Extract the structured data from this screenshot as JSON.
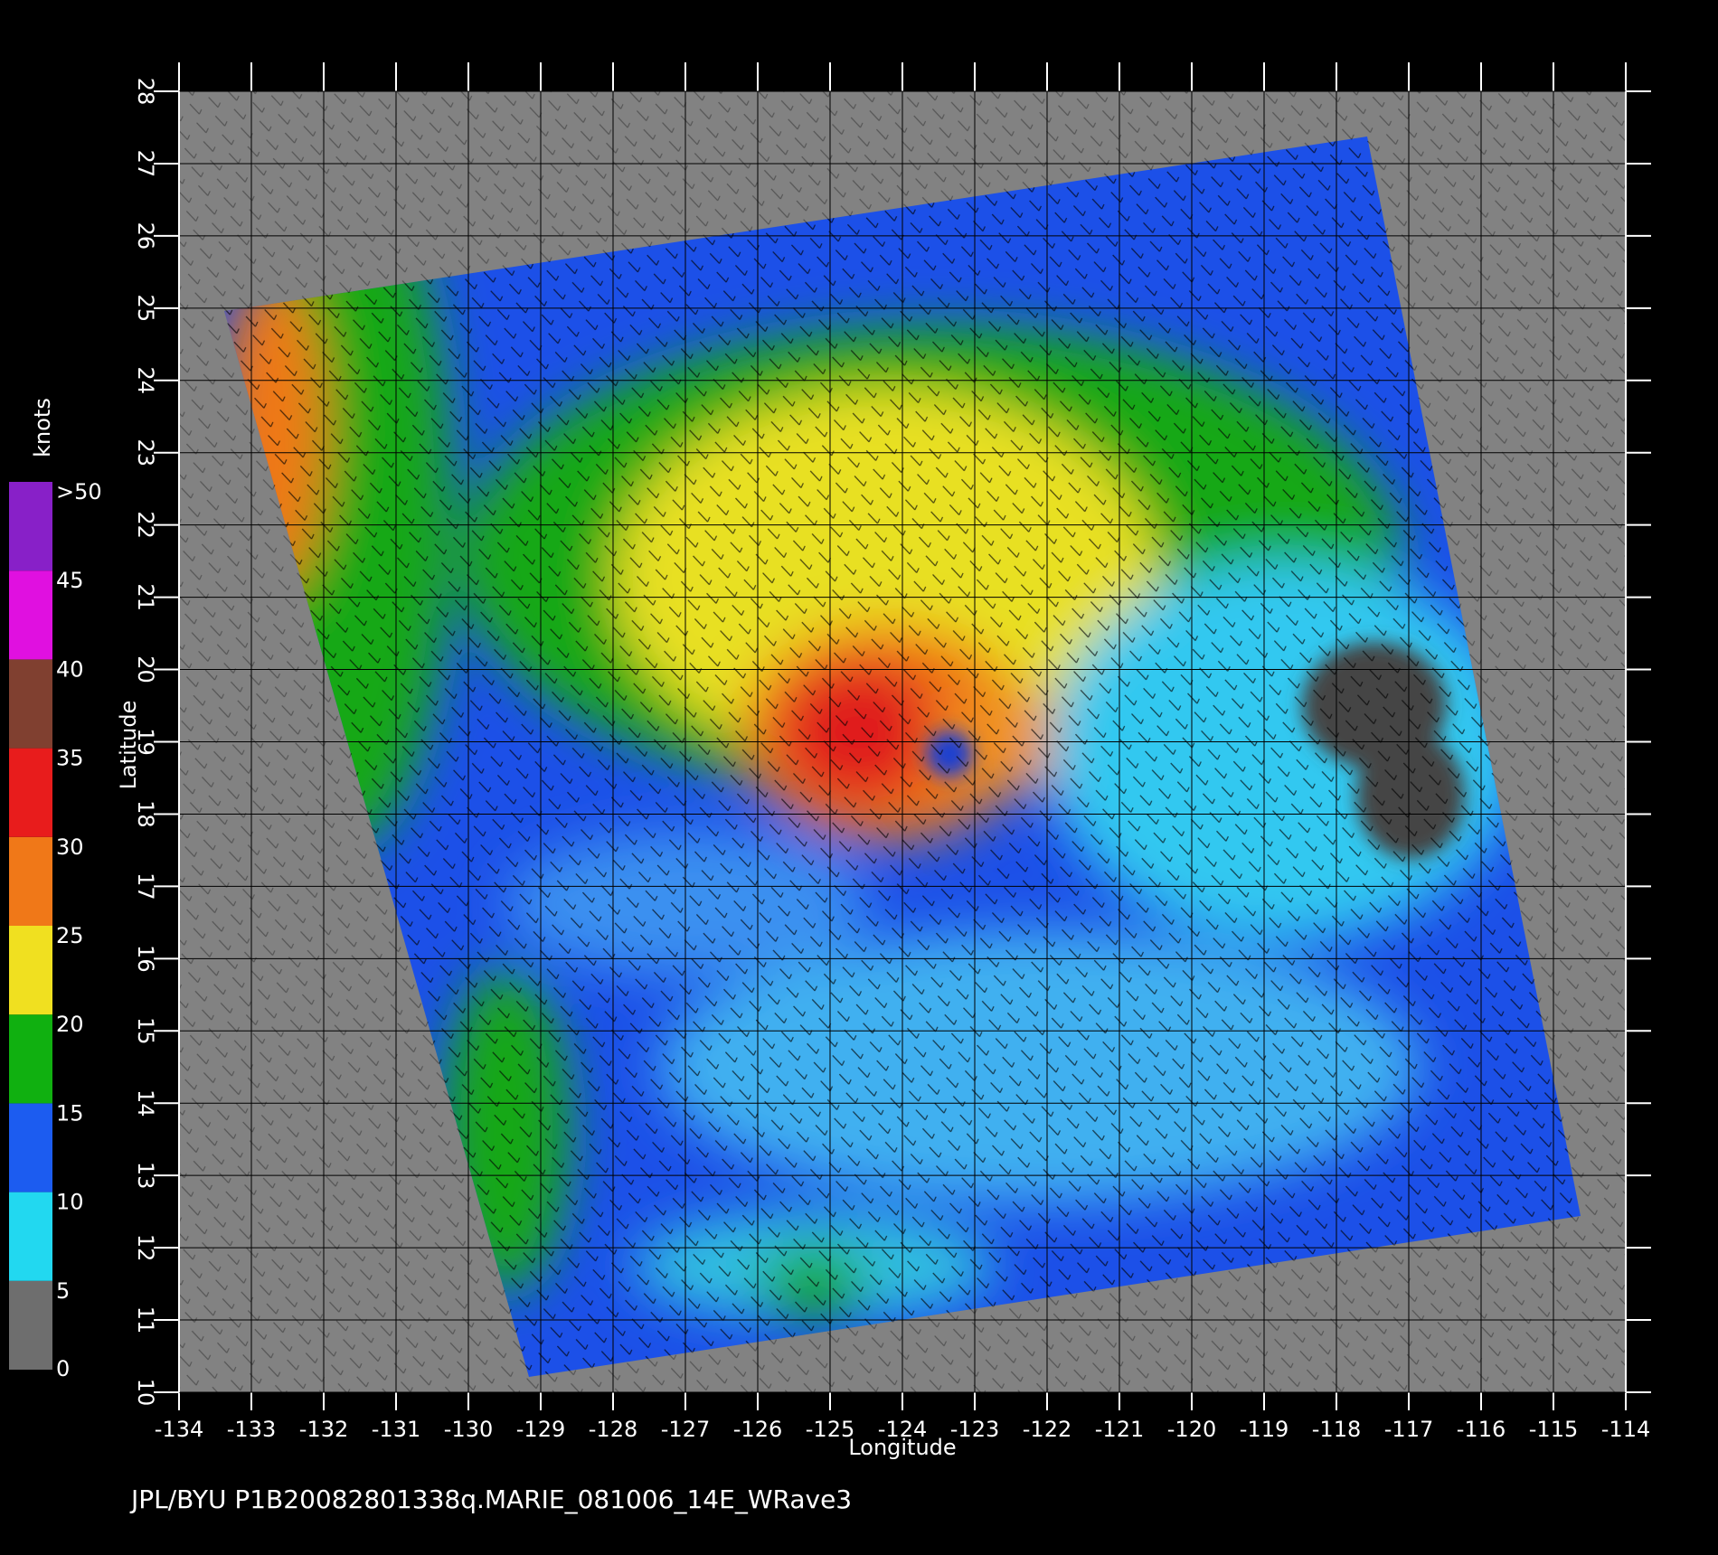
{
  "map": {
    "xlabel": "Longitude",
    "ylabel": "Latitude",
    "xlim": [
      -134,
      -114
    ],
    "ylim": [
      10,
      28
    ],
    "xticks": [
      -134,
      -133,
      -132,
      -131,
      -130,
      -129,
      -128,
      -127,
      -126,
      -125,
      -124,
      -123,
      -122,
      -121,
      -120,
      -119,
      -118,
      -117,
      -116,
      -115,
      -114
    ],
    "yticks": [
      10,
      11,
      12,
      13,
      14,
      15,
      16,
      17,
      18,
      19,
      20,
      21,
      22,
      23,
      24,
      25,
      26,
      27,
      28
    ]
  },
  "colorbar": {
    "title": "knots",
    "lim": [
      0,
      50
    ],
    "ticks": [
      0,
      5,
      10,
      15,
      20,
      25,
      30,
      35,
      40,
      {
        "value": 45,
        "label": "45"
      },
      {
        "value": 50,
        "label": ">50"
      }
    ],
    "colors": [
      "#6e6e6e",
      "#22d8f0",
      "#1c5cf0",
      "#10b010",
      "#f0e020",
      "#f07818",
      "#e81c1c",
      "#804030",
      "#e010e0",
      "#8820c8"
    ]
  },
  "footer": "JPL/BYU  P1B20082801338q.MARIE_081006_14E_WRave3"
}
